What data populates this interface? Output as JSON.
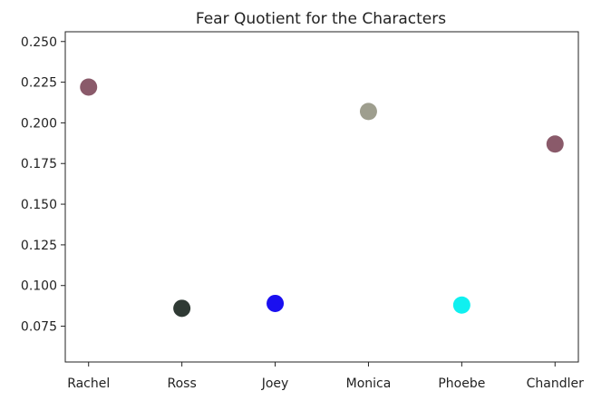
{
  "chart_data": {
    "type": "scatter",
    "title": "Fear Quotient for the Characters",
    "xlabel": "",
    "ylabel": "",
    "categories": [
      "Rachel",
      "Ross",
      "Joey",
      "Monica",
      "Phoebe",
      "Chandler"
    ],
    "values": [
      0.222,
      0.086,
      0.089,
      0.207,
      0.088,
      0.187
    ],
    "point_colors": [
      "#8a5a6a",
      "#2f3a34",
      "#1a0ff0",
      "#9e9e8e",
      "#10f0f0",
      "#8a5a6a"
    ],
    "ylim": [
      0.053,
      0.256
    ],
    "yticks": [
      0.075,
      0.1,
      0.125,
      0.15,
      0.175,
      0.2,
      0.225,
      0.25
    ],
    "ytick_labels": [
      "0.075",
      "0.100",
      "0.125",
      "0.150",
      "0.175",
      "0.200",
      "0.225",
      "0.250"
    ],
    "grid": false,
    "legend": "none"
  }
}
